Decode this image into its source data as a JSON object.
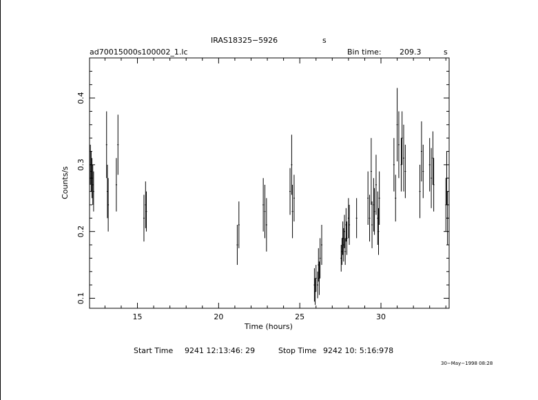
{
  "header": {
    "target": "IRAS18325−5926",
    "target_suffix": "s",
    "file": "ad70015000s100002_1.lc",
    "bin_label": "Bin time:",
    "bin_value": "209.3",
    "bin_unit": "s"
  },
  "footer": {
    "start_label": "Start Time",
    "start_value": "9241 12:13:46: 29",
    "stop_label": "Stop Time",
    "stop_value": "9242 10: 5:16:978",
    "datestamp": "30−May−1998 08:28"
  },
  "chart_data": {
    "type": "scatter",
    "xlabel": "Time (hours)",
    "ylabel": "Counts/s",
    "xlim": [
      12.05,
      34.2
    ],
    "ylim": [
      0.085,
      0.46
    ],
    "xticks": [
      15,
      20,
      25,
      30
    ],
    "yticks": [
      0.1,
      0.2,
      0.3,
      0.4
    ],
    "ytick_labels": [
      "0.1",
      "0.2",
      "0.3",
      "0.4"
    ],
    "grid": false,
    "error_bars": "vertical",
    "points": [
      [
        12.1,
        0.3,
        0.03
      ],
      [
        12.15,
        0.29,
        0.03
      ],
      [
        12.2,
        0.28,
        0.03
      ],
      [
        12.25,
        0.27,
        0.03
      ],
      [
        12.3,
        0.26,
        0.03
      ],
      [
        13.1,
        0.33,
        0.05
      ],
      [
        13.15,
        0.26,
        0.04
      ],
      [
        13.2,
        0.24,
        0.04
      ],
      [
        13.7,
        0.27,
        0.04
      ],
      [
        13.8,
        0.33,
        0.045
      ],
      [
        15.4,
        0.22,
        0.035
      ],
      [
        15.5,
        0.24,
        0.035
      ],
      [
        15.55,
        0.23,
        0.03
      ],
      [
        21.15,
        0.18,
        0.03
      ],
      [
        21.25,
        0.21,
        0.035
      ],
      [
        22.75,
        0.24,
        0.04
      ],
      [
        22.85,
        0.23,
        0.04
      ],
      [
        22.95,
        0.21,
        0.04
      ],
      [
        24.4,
        0.26,
        0.035
      ],
      [
        24.5,
        0.3,
        0.045
      ],
      [
        24.55,
        0.23,
        0.04
      ],
      [
        24.65,
        0.25,
        0.035
      ],
      [
        25.9,
        0.12,
        0.025
      ],
      [
        25.95,
        0.11,
        0.02
      ],
      [
        26.0,
        0.13,
        0.02
      ],
      [
        26.1,
        0.12,
        0.02
      ],
      [
        26.15,
        0.15,
        0.025
      ],
      [
        26.2,
        0.13,
        0.025
      ],
      [
        26.25,
        0.16,
        0.03
      ],
      [
        26.35,
        0.18,
        0.03
      ],
      [
        27.55,
        0.16,
        0.02
      ],
      [
        27.6,
        0.17,
        0.02
      ],
      [
        27.65,
        0.19,
        0.025
      ],
      [
        27.7,
        0.18,
        0.025
      ],
      [
        27.75,
        0.2,
        0.025
      ],
      [
        27.8,
        0.17,
        0.02
      ],
      [
        27.85,
        0.21,
        0.025
      ],
      [
        27.9,
        0.19,
        0.025
      ],
      [
        28.0,
        0.22,
        0.03
      ],
      [
        28.05,
        0.21,
        0.03
      ],
      [
        28.5,
        0.22,
        0.03
      ],
      [
        29.2,
        0.25,
        0.04
      ],
      [
        29.3,
        0.22,
        0.035
      ],
      [
        29.4,
        0.29,
        0.05
      ],
      [
        29.45,
        0.21,
        0.035
      ],
      [
        29.55,
        0.24,
        0.04
      ],
      [
        29.6,
        0.23,
        0.035
      ],
      [
        29.7,
        0.27,
        0.045
      ],
      [
        29.8,
        0.22,
        0.04
      ],
      [
        29.85,
        0.2,
        0.035
      ],
      [
        29.9,
        0.25,
        0.04
      ],
      [
        30.8,
        0.3,
        0.04
      ],
      [
        30.9,
        0.25,
        0.035
      ],
      [
        31.0,
        0.36,
        0.055
      ],
      [
        31.1,
        0.33,
        0.05
      ],
      [
        31.25,
        0.3,
        0.04
      ],
      [
        31.3,
        0.34,
        0.04
      ],
      [
        31.4,
        0.31,
        0.05
      ],
      [
        31.5,
        0.29,
        0.04
      ],
      [
        32.4,
        0.26,
        0.04
      ],
      [
        32.5,
        0.32,
        0.045
      ],
      [
        32.6,
        0.29,
        0.04
      ],
      [
        33.0,
        0.3,
        0.04
      ],
      [
        33.1,
        0.28,
        0.045
      ],
      [
        33.2,
        0.31,
        0.04
      ],
      [
        33.25,
        0.27,
        0.04
      ],
      [
        34.0,
        0.24,
        0.04
      ],
      [
        34.05,
        0.28,
        0.04
      ],
      [
        34.1,
        0.22,
        0.04
      ]
    ]
  }
}
